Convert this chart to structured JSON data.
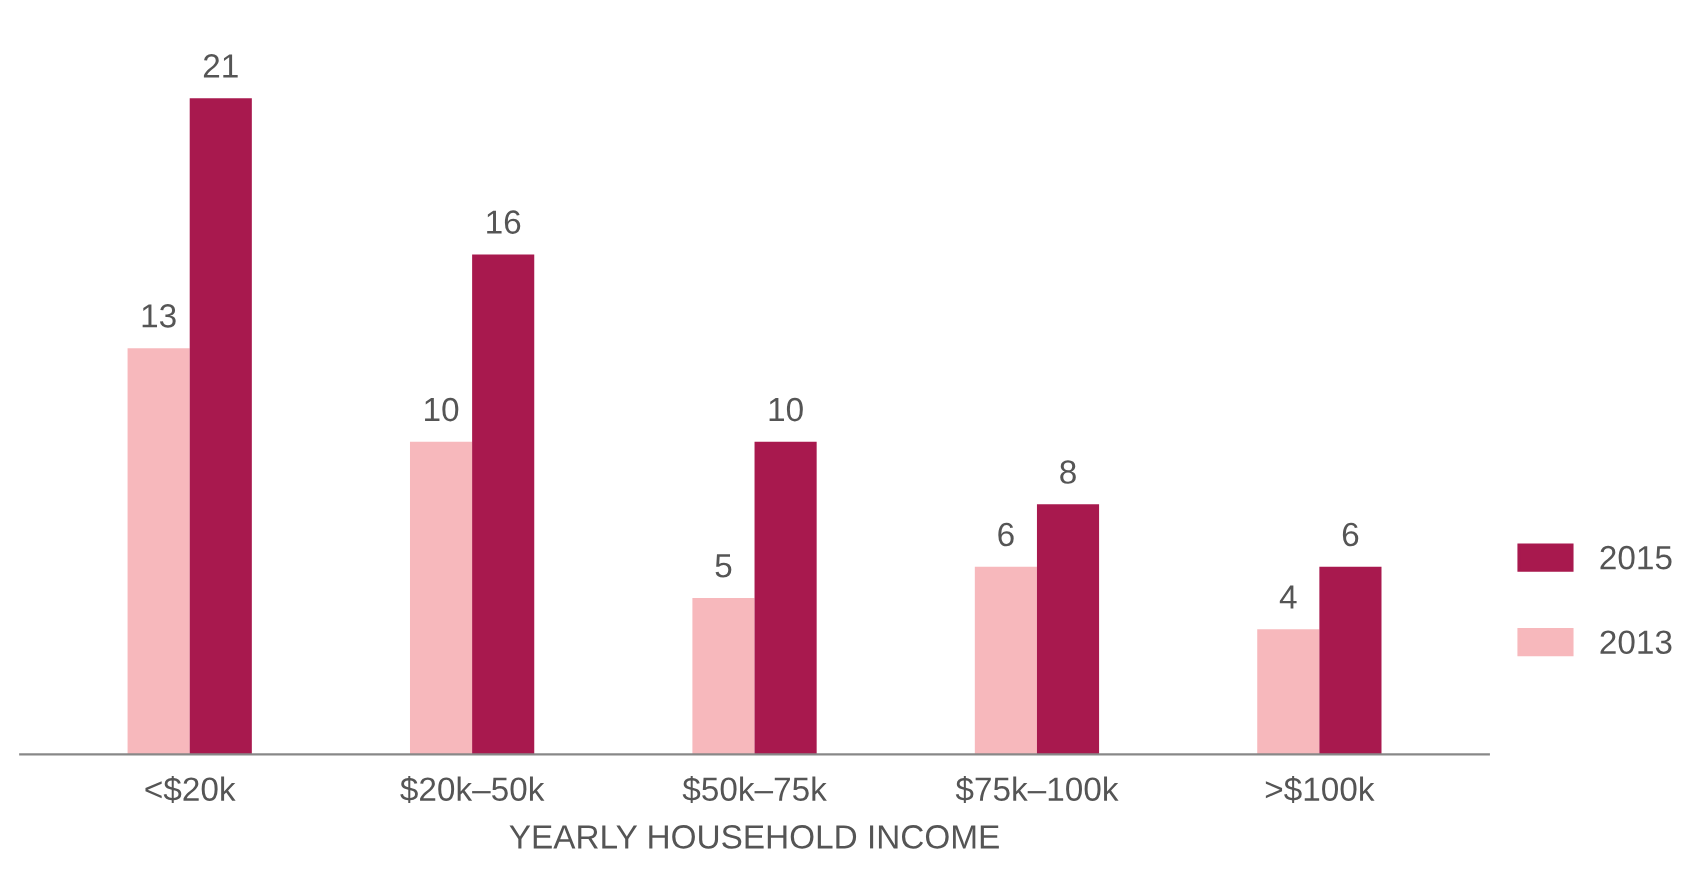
{
  "chart_data": {
    "type": "bar",
    "xlabel": "YEARLY HOUSEHOLD INCOME",
    "categories": [
      "<$20k",
      "$20k–50k",
      "$50k–75k",
      "$75k–100k",
      ">$100k"
    ],
    "series": [
      {
        "name": "2013",
        "color": "#f7b8bc",
        "values": [
          13,
          10,
          5,
          6,
          4
        ]
      },
      {
        "name": "2015",
        "color": "#a8194e",
        "values": [
          21,
          16,
          10,
          8,
          6
        ]
      }
    ],
    "data_labels": true,
    "grid": false,
    "legend": "right",
    "tick_labels": "x"
  }
}
